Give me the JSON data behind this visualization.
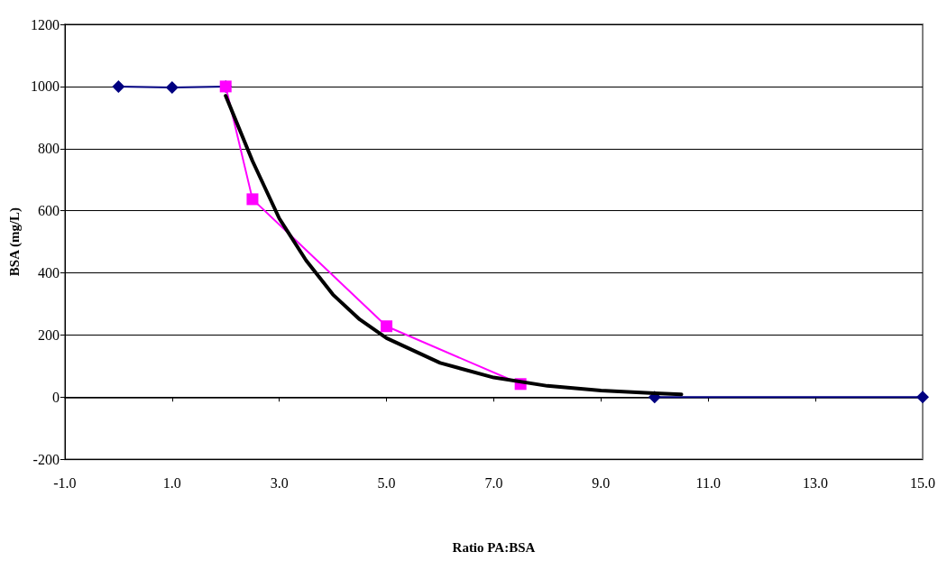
{
  "chart_data": {
    "type": "line",
    "xlabel": "Ratio PA:BSA",
    "ylabel": "BSA (mg/L)",
    "xlim": [
      -1,
      15
    ],
    "xticks": [
      {
        "value": -1,
        "label": "-1.0"
      },
      {
        "value": 1,
        "label": "1.0"
      },
      {
        "value": 3,
        "label": "3.0"
      },
      {
        "value": 5,
        "label": "5.0"
      },
      {
        "value": 7,
        "label": "7.0"
      },
      {
        "value": 9,
        "label": "9.0"
      },
      {
        "value": 11,
        "label": "11.0"
      },
      {
        "value": 13,
        "label": "13.0"
      },
      {
        "value": 15,
        "label": "15.0"
      }
    ],
    "ylim": [
      -200,
      1200
    ],
    "yticks": [
      -200,
      0,
      200,
      400,
      600,
      800,
      1000,
      1200
    ],
    "grid": "y",
    "series": [
      {
        "color": "#000080",
        "marker": "diamond",
        "x": [
          0,
          1,
          2,
          2.5,
          5,
          7.5,
          10,
          15
        ],
        "values": [
          1000,
          997,
          1000,
          null,
          null,
          null,
          0,
          0
        ]
      },
      {
        "color": "#ff00ff",
        "marker": "square",
        "x": [
          2,
          2.5,
          5,
          7.5
        ],
        "values": [
          1000,
          637,
          228,
          42
        ]
      },
      {
        "color": "#000000",
        "marker": "none",
        "x": [
          2,
          2.5,
          3,
          3.5,
          4,
          4.5,
          5,
          6,
          7,
          8,
          9,
          10,
          10.5
        ],
        "values": [
          970,
          760,
          575,
          440,
          330,
          250,
          190,
          110,
          63,
          36,
          21,
          12,
          9
        ]
      }
    ]
  }
}
